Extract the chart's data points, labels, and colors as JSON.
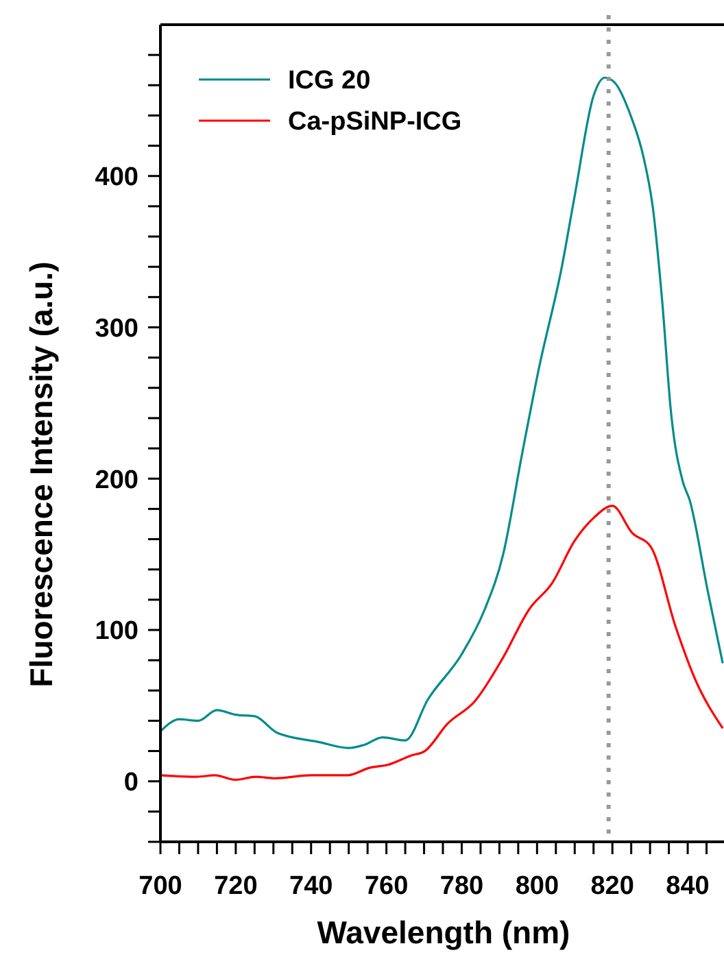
{
  "chart_data": {
    "type": "line",
    "xlabel": "Wavelength (nm)",
    "ylabel": "Fluorescence Intensity (a.u.)",
    "xlim": [
      700,
      850
    ],
    "ylim": [
      -40,
      500
    ],
    "xticks": [
      700,
      {
        "value": 705,
        "label": null
      },
      {
        "value": 710,
        "label": null
      },
      {
        "value": 715,
        "label": null
      },
      720,
      {
        "value": 725,
        "label": null
      },
      {
        "value": 730,
        "label": null
      },
      {
        "value": 735,
        "label": null
      },
      740,
      {
        "value": 745,
        "label": null
      },
      {
        "value": 750,
        "label": null
      },
      {
        "value": 755,
        "label": null
      },
      760,
      {
        "value": 765,
        "label": null
      },
      {
        "value": 770,
        "label": null
      },
      {
        "value": 775,
        "label": null
      },
      780,
      {
        "value": 785,
        "label": null
      },
      {
        "value": 790,
        "label": null
      },
      {
        "value": 795,
        "label": null
      },
      800,
      {
        "value": 805,
        "label": null
      },
      {
        "value": 810,
        "label": null
      },
      {
        "value": 815,
        "label": null
      },
      820,
      {
        "value": 825,
        "label": null
      },
      {
        "value": 830,
        "label": null
      },
      {
        "value": 835,
        "label": null
      },
      840,
      {
        "value": 845,
        "label": null
      }
    ],
    "yticks": [
      {
        "value": -40,
        "label": null
      },
      {
        "value": -20,
        "label": null
      },
      0,
      {
        "value": 20,
        "label": null
      },
      {
        "value": 40,
        "label": null
      },
      {
        "value": 60,
        "label": null
      },
      {
        "value": 80,
        "label": null
      },
      100,
      {
        "value": 120,
        "label": null
      },
      {
        "value": 140,
        "label": null
      },
      {
        "value": 160,
        "label": null
      },
      {
        "value": 180,
        "label": null
      },
      200,
      {
        "value": 220,
        "label": null
      },
      {
        "value": 240,
        "label": null
      },
      {
        "value": 260,
        "label": null
      },
      {
        "value": 280,
        "label": null
      },
      300,
      {
        "value": 320,
        "label": null
      },
      {
        "value": 340,
        "label": null
      },
      {
        "value": 360,
        "label": null
      },
      {
        "value": 380,
        "label": null
      },
      400,
      {
        "value": 420,
        "label": null
      },
      {
        "value": 440,
        "label": null
      },
      {
        "value": 460,
        "label": null
      },
      {
        "value": 480,
        "label": null
      }
    ],
    "legend": "top left",
    "line_style": "solid",
    "grid": false,
    "ref_lines": [
      {
        "axis": "x",
        "value": 819,
        "color": "#999999",
        "line_style": "dotted"
      }
    ],
    "series": [
      {
        "name": "ICG 20",
        "color": "#008b8b",
        "x": [
          700,
          705,
          710,
          715,
          720,
          725,
          731,
          742,
          750,
          754,
          759,
          765,
          771,
          780,
          786,
          791,
          796,
          800.5,
          806.5,
          810,
          815,
          818,
          820.5,
          824.7,
          828.4,
          830.8,
          833.2,
          835.6,
          838.7,
          840.5,
          845.3,
          849.3
        ],
        "values": [
          33,
          41,
          40,
          47,
          44,
          43,
          32,
          26,
          22,
          24,
          29,
          27,
          54,
          84,
          113,
          150,
          216,
          273,
          339,
          387,
          453,
          465,
          462,
          441,
          411,
          378,
          318,
          243,
          198,
          186,
          126,
          78
        ]
      },
      {
        "name": "Ca-pSiNP-ICG",
        "color": "#ff0000",
        "x": [
          700,
          709.6,
          714.4,
          720,
          725.3,
          730.2,
          740,
          749.6,
          755.6,
          760.5,
          766.5,
          770.2,
          776.2,
          783.5,
          790.8,
          798,
          804,
          810,
          815,
          820,
          825.3,
          830.2,
          836.8,
          841.7,
          849.3
        ],
        "values": [
          4,
          3,
          4,
          1,
          3,
          2,
          4,
          4,
          9,
          11,
          17,
          20,
          38,
          53,
          81,
          114,
          131,
          159,
          174,
          182,
          164,
          155,
          102,
          69,
          35
        ]
      }
    ]
  }
}
